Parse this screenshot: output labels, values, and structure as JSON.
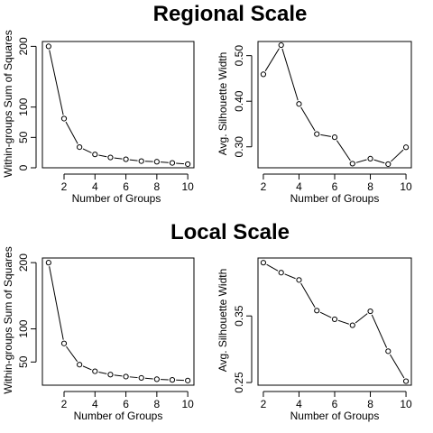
{
  "sections": [
    {
      "title": "Regional Scale"
    },
    {
      "title": "Local Scale"
    }
  ],
  "chart_data": [
    {
      "type": "line",
      "section": "Regional Scale",
      "xlabel": "Number of Groups",
      "ylabel": "Within-groups Sum of Squares",
      "x": [
        1,
        2,
        3,
        4,
        5,
        6,
        7,
        8,
        9,
        10
      ],
      "y": [
        200,
        81,
        34,
        22,
        17,
        14,
        11,
        10,
        8,
        6
      ],
      "xlim": [
        0.6,
        10.4
      ],
      "ylim": [
        0,
        208
      ],
      "xticks": [
        2,
        4,
        6,
        8,
        10
      ],
      "yticks": [
        0,
        50,
        100,
        200
      ],
      "grid": false
    },
    {
      "type": "line",
      "section": "Regional Scale",
      "xlabel": "Number of Groups",
      "ylabel": "Avg. Silhouette Width",
      "x": [
        2,
        3,
        4,
        5,
        6,
        7,
        8,
        9,
        10
      ],
      "y": [
        0.459,
        0.523,
        0.394,
        0.328,
        0.321,
        0.263,
        0.274,
        0.262,
        0.299
      ],
      "xlim": [
        1.7,
        10.3
      ],
      "ylim": [
        0.254,
        0.531
      ],
      "xticks": [
        2,
        4,
        6,
        8,
        10
      ],
      "yticks": [
        0.3,
        0.4,
        0.5
      ],
      "ytick_labels": [
        "0.30",
        "0.40",
        "0.50"
      ],
      "grid": false
    },
    {
      "type": "line",
      "section": "Local Scale",
      "xlabel": "Number of Groups",
      "ylabel": "Within-groups Sum of Squares",
      "x": [
        1,
        2,
        3,
        4,
        5,
        6,
        7,
        8,
        9,
        10
      ],
      "y": [
        200,
        78,
        46,
        36,
        31,
        28,
        26,
        24,
        23,
        22
      ],
      "xlim": [
        0.6,
        10.4
      ],
      "ylim": [
        15,
        207
      ],
      "xticks": [
        2,
        4,
        6,
        8,
        10
      ],
      "yticks": [
        50,
        100,
        200
      ],
      "grid": false
    },
    {
      "type": "line",
      "section": "Local Scale",
      "xlabel": "Number of Groups",
      "ylabel": "Avg. Silhouette Width",
      "x": [
        2,
        3,
        4,
        5,
        6,
        7,
        8,
        9,
        10
      ],
      "y": [
        0.43,
        0.415,
        0.404,
        0.358,
        0.345,
        0.336,
        0.357,
        0.297,
        0.252
      ],
      "xlim": [
        1.7,
        10.3
      ],
      "ylim": [
        0.246,
        0.437
      ],
      "xticks": [
        2,
        4,
        6,
        8,
        10
      ],
      "yticks": [
        0.25,
        0.35
      ],
      "grid": false
    }
  ]
}
